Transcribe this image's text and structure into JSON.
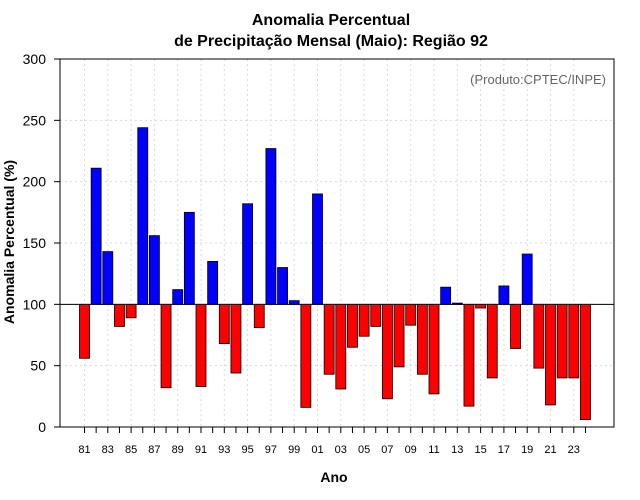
{
  "chart_data": {
    "type": "bar",
    "title_line1": "Anomalia Percentual",
    "title_line2": "de Precipitação Mensal (Maio): Região 92",
    "xlabel": "Ano",
    "ylabel": "Anomalia Percentual (%)",
    "annotation": "(Produto:CPTEC/INPE)",
    "ylim": [
      0,
      300
    ],
    "yticks": [
      0,
      50,
      100,
      150,
      200,
      250,
      300
    ],
    "baseline": 100,
    "grid": true,
    "colors": {
      "above": "#0000ff",
      "below": "#ff0000",
      "outline": "#000000"
    },
    "categories": [
      "1981",
      "1982",
      "1983",
      "1984",
      "1985",
      "1986",
      "1987",
      "1988",
      "1989",
      "1990",
      "1991",
      "1992",
      "1993",
      "1994",
      "1995",
      "1996",
      "1997",
      "1998",
      "1999",
      "2000",
      "2001",
      "2002",
      "2003",
      "2004",
      "2005",
      "2006",
      "2007",
      "2008",
      "2009",
      "2010",
      "2011",
      "2012",
      "2013",
      "2014",
      "2015",
      "2016",
      "2017",
      "2018",
      "2019",
      "2020",
      "2021",
      "2022",
      "2023",
      "2024"
    ],
    "tick_labels": [
      "81",
      "",
      "83",
      "",
      "85",
      "",
      "87",
      "",
      "89",
      "",
      "91",
      "",
      "93",
      "",
      "95",
      "",
      "97",
      "",
      "99",
      "",
      "01",
      "",
      "03",
      "",
      "05",
      "",
      "07",
      "",
      "09",
      "",
      "11",
      "",
      "13",
      "",
      "15",
      "",
      "17",
      "",
      "19",
      "",
      "21",
      "",
      "23",
      ""
    ],
    "values": [
      56,
      211,
      143,
      82,
      89,
      244,
      156,
      32,
      112,
      175,
      33,
      135,
      68,
      44,
      182,
      81,
      227,
      130,
      103,
      16,
      190,
      43,
      31,
      65,
      74,
      82,
      23,
      49,
      83,
      43,
      27,
      114,
      101,
      17,
      97,
      40,
      115,
      64,
      141,
      48,
      18,
      40,
      40,
      6
    ]
  }
}
